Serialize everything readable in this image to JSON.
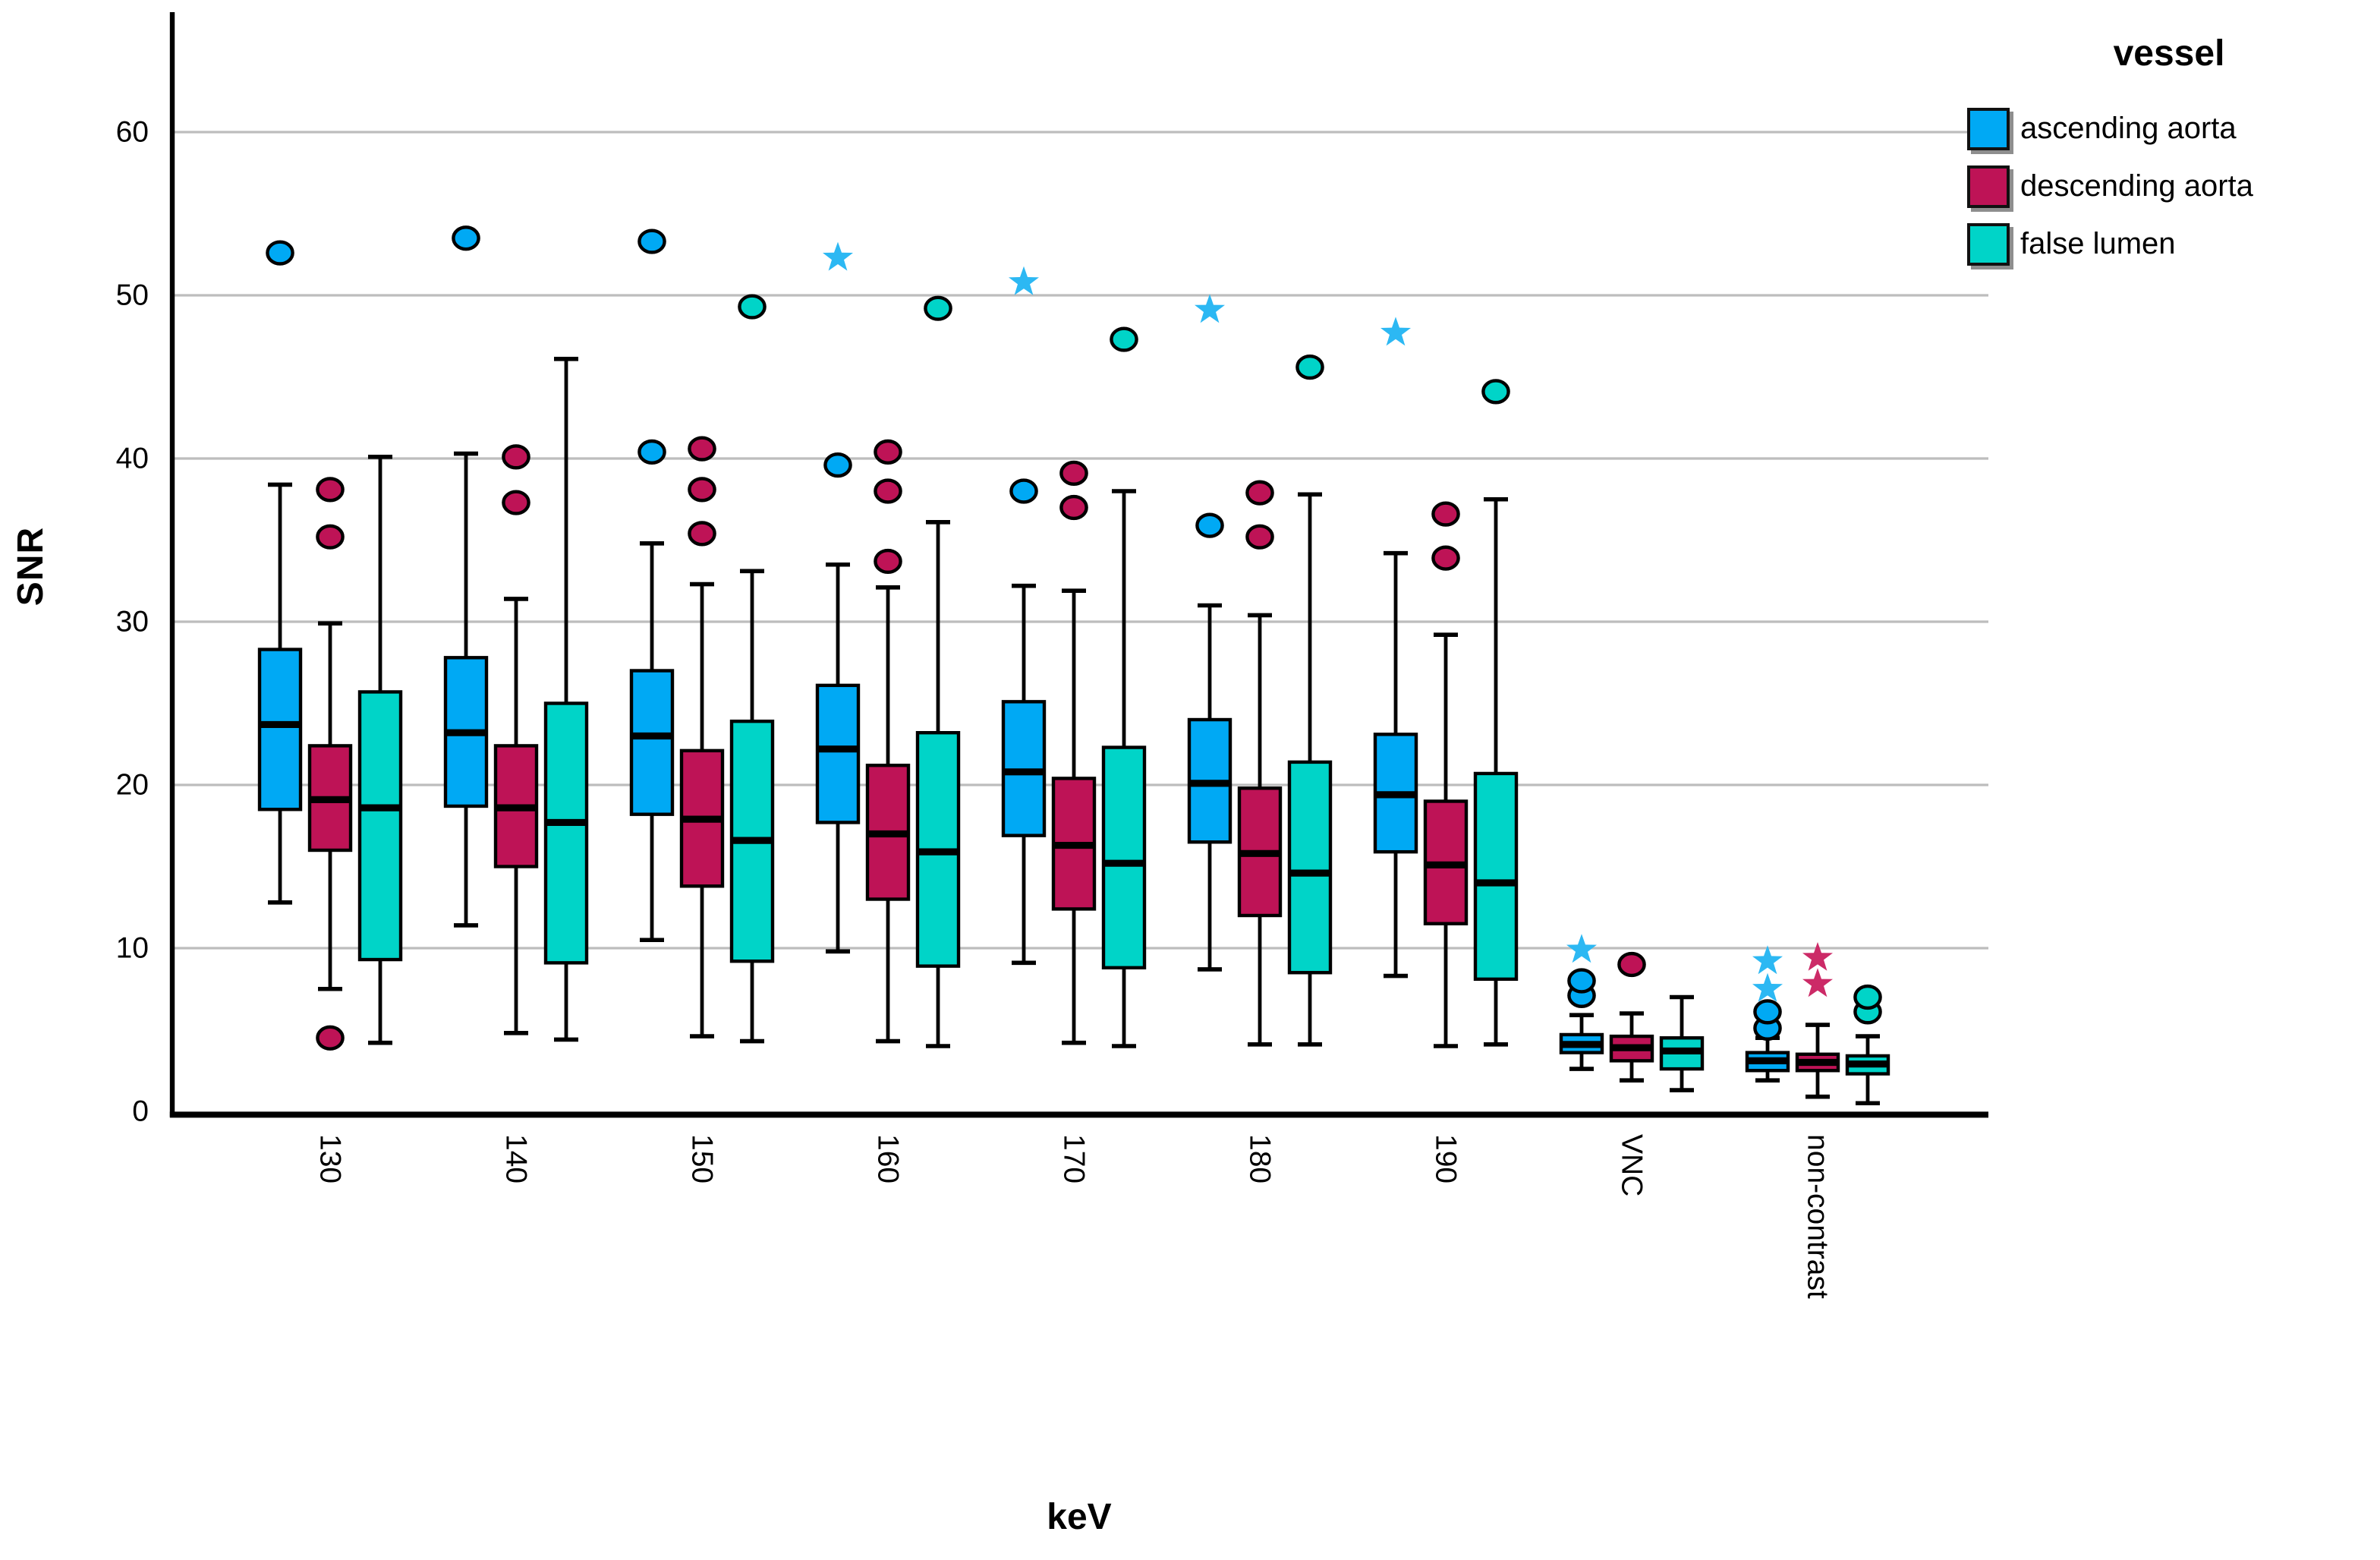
{
  "titles": {
    "y": "SNR",
    "x": "keV"
  },
  "legend": {
    "title": "vessel",
    "items": [
      {
        "label": "ascending aorta"
      },
      {
        "label": "descending aorta"
      },
      {
        "label": "false lumen"
      }
    ]
  },
  "colors": {
    "background": "#ffffff",
    "gridline": "#BDBDBD",
    "axis": "#000000",
    "box_border": "#000000"
  },
  "chart_data": {
    "type": "box",
    "title": "",
    "xlabel": "keV",
    "ylabel": "SNR",
    "ylim": [
      0,
      67
    ],
    "y_ticks": [
      0,
      10,
      20,
      30,
      40,
      50,
      60
    ],
    "grid": "horizontal gridlines at every 10, no top/right frame",
    "legend_title": "vessel",
    "legend_position": "top-right",
    "categories": [
      "130",
      "140",
      "150",
      "160",
      "170",
      "180",
      "190",
      "VNC",
      "non-contrast"
    ],
    "series": [
      {
        "name": "ascending aorta",
        "color": "#00A9F4",
        "star_color": "#2CB8F3",
        "whisker_low": [
          12.8,
          11.4,
          10.5,
          9.8,
          9.1,
          8.7,
          8.3,
          2.6,
          1.9
        ],
        "q1": [
          18.5,
          18.7,
          18.2,
          17.7,
          16.9,
          16.5,
          15.9,
          3.6,
          2.5
        ],
        "median": [
          23.7,
          23.2,
          23.0,
          22.2,
          20.8,
          20.1,
          19.4,
          4.1,
          3.1
        ],
        "q3": [
          28.3,
          27.8,
          27.0,
          26.1,
          25.1,
          24.0,
          23.1,
          4.7,
          3.6
        ],
        "whisker_high": [
          38.4,
          40.3,
          34.8,
          33.5,
          32.2,
          31.0,
          34.2,
          5.9,
          4.5
        ],
        "outlier_circles": [
          [
            52.6
          ],
          [
            53.5
          ],
          [
            40.4,
            53.3
          ],
          [
            39.6
          ],
          [
            38.0
          ],
          [
            35.9
          ],
          [],
          [
            7.1,
            8.0
          ],
          [
            5.1,
            6.1
          ]
        ],
        "outlier_stars": [
          [],
          [],
          [],
          [
            52.3
          ],
          [
            50.8
          ],
          [
            49.1
          ],
          [
            47.7
          ],
          [
            9.9
          ],
          [
            7.5,
            9.2
          ]
        ]
      },
      {
        "name": "descending aorta",
        "color": "#BE1356",
        "star_color": "#CC2A67",
        "whisker_low": [
          7.5,
          4.8,
          4.6,
          4.3,
          4.2,
          4.1,
          4.0,
          1.9,
          0.9
        ],
        "q1": [
          16.0,
          15.0,
          13.8,
          13.0,
          12.4,
          12.0,
          11.5,
          3.1,
          2.5
        ],
        "median": [
          19.1,
          18.6,
          17.9,
          17.0,
          16.3,
          15.8,
          15.1,
          3.9,
          3.0
        ],
        "q3": [
          22.4,
          22.4,
          22.1,
          21.2,
          20.4,
          19.8,
          19.0,
          4.6,
          3.5
        ],
        "whisker_high": [
          29.9,
          31.4,
          32.3,
          32.1,
          31.9,
          30.4,
          29.2,
          6.0,
          5.3
        ],
        "outlier_circles": [
          [
            4.5,
            35.2,
            38.1
          ],
          [
            37.3,
            40.1
          ],
          [
            35.4,
            38.1,
            40.6
          ],
          [
            33.7,
            38.0,
            40.4
          ],
          [
            37.0,
            39.1
          ],
          [
            35.2,
            37.9
          ],
          [
            33.9,
            36.6
          ],
          [
            9.0
          ],
          []
        ],
        "outlier_stars": [
          [],
          [],
          [],
          [],
          [],
          [],
          [],
          [],
          [
            7.8,
            9.4
          ]
        ]
      },
      {
        "name": "false lumen",
        "color": "#00D4C8",
        "star_color": "#00D4C8",
        "whisker_low": [
          4.2,
          4.4,
          4.3,
          4.0,
          4.0,
          4.1,
          4.1,
          1.3,
          0.5
        ],
        "q1": [
          9.3,
          9.1,
          9.2,
          8.9,
          8.8,
          8.5,
          8.1,
          2.6,
          2.3
        ],
        "median": [
          18.6,
          17.7,
          16.6,
          15.9,
          15.2,
          14.6,
          14.0,
          3.7,
          2.9
        ],
        "q3": [
          25.7,
          25.0,
          23.9,
          23.2,
          22.3,
          21.4,
          20.7,
          4.5,
          3.4
        ],
        "whisker_high": [
          40.1,
          46.1,
          33.1,
          36.1,
          38.0,
          37.8,
          37.5,
          7.0,
          4.6
        ],
        "outlier_circles": [
          [],
          [],
          [
            49.3
          ],
          [
            49.2
          ],
          [
            47.3
          ],
          [
            45.6
          ],
          [
            44.1
          ],
          [],
          [
            6.1,
            7.0
          ]
        ],
        "outlier_stars": [
          [],
          [],
          [],
          [],
          [],
          [],
          [],
          [],
          []
        ]
      }
    ]
  }
}
